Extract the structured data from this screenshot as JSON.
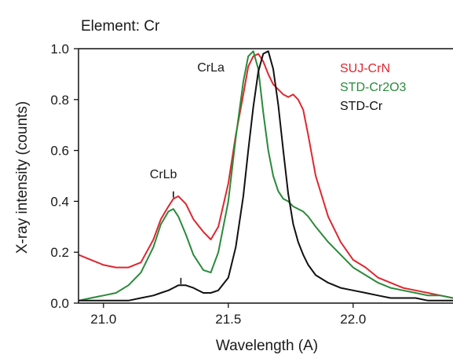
{
  "chart_data": {
    "type": "line",
    "title": "Element: Cr",
    "xlabel": "Wavelength (A)",
    "ylabel": "X-ray intensity (counts)",
    "xlim": [
      20.9,
      22.4
    ],
    "ylim": [
      0.0,
      1.0
    ],
    "xticks": [
      21.0,
      21.5,
      22.0
    ],
    "xtick_labels": [
      "21.0",
      "21.5",
      "22.0"
    ],
    "yticks": [
      0.0,
      0.2,
      0.4,
      0.6,
      0.8,
      1.0
    ],
    "ytick_labels": [
      "0.0",
      "0.2",
      "0.4",
      "0.6",
      "0.8",
      "1.0"
    ],
    "grid": false,
    "legend_position": "top-right",
    "series": [
      {
        "name": "SUJ-CrN",
        "color": "#e0262f",
        "x": [
          20.9,
          20.95,
          21.0,
          21.05,
          21.1,
          21.15,
          21.2,
          21.23,
          21.26,
          21.28,
          21.3,
          21.33,
          21.36,
          21.4,
          21.43,
          21.46,
          21.5,
          21.53,
          21.56,
          21.58,
          21.6,
          21.62,
          21.64,
          21.66,
          21.68,
          21.7,
          21.72,
          21.74,
          21.76,
          21.78,
          21.8,
          21.82,
          21.85,
          21.9,
          21.95,
          22.0,
          22.05,
          22.1,
          22.15,
          22.2,
          22.25,
          22.3,
          22.35,
          22.4
        ],
        "y": [
          0.19,
          0.17,
          0.15,
          0.14,
          0.14,
          0.16,
          0.25,
          0.33,
          0.38,
          0.41,
          0.42,
          0.39,
          0.33,
          0.28,
          0.25,
          0.3,
          0.47,
          0.66,
          0.82,
          0.93,
          0.97,
          0.98,
          0.95,
          0.9,
          0.86,
          0.84,
          0.82,
          0.81,
          0.82,
          0.8,
          0.76,
          0.66,
          0.5,
          0.34,
          0.24,
          0.17,
          0.14,
          0.1,
          0.08,
          0.06,
          0.05,
          0.04,
          0.03,
          0.02
        ]
      },
      {
        "name": "STD-Cr2O3",
        "color": "#2a8a3a",
        "x": [
          20.9,
          20.95,
          21.0,
          21.05,
          21.1,
          21.15,
          21.2,
          21.23,
          21.26,
          21.28,
          21.3,
          21.33,
          21.36,
          21.4,
          21.43,
          21.46,
          21.5,
          21.53,
          21.56,
          21.58,
          21.6,
          21.62,
          21.64,
          21.66,
          21.68,
          21.7,
          21.72,
          21.74,
          21.76,
          21.78,
          21.8,
          21.82,
          21.85,
          21.9,
          21.95,
          22.0,
          22.05,
          22.1,
          22.15,
          22.2,
          22.25,
          22.3,
          22.35,
          22.4
        ],
        "y": [
          0.01,
          0.02,
          0.03,
          0.04,
          0.07,
          0.12,
          0.22,
          0.31,
          0.36,
          0.37,
          0.34,
          0.27,
          0.19,
          0.13,
          0.12,
          0.2,
          0.4,
          0.65,
          0.87,
          0.97,
          0.99,
          0.92,
          0.75,
          0.6,
          0.5,
          0.44,
          0.41,
          0.4,
          0.38,
          0.37,
          0.36,
          0.34,
          0.3,
          0.24,
          0.19,
          0.14,
          0.11,
          0.08,
          0.06,
          0.05,
          0.04,
          0.03,
          0.03,
          0.02
        ]
      },
      {
        "name": "STD-Cr",
        "color": "#111111",
        "x": [
          20.9,
          20.95,
          21.0,
          21.05,
          21.1,
          21.15,
          21.2,
          21.23,
          21.26,
          21.28,
          21.3,
          21.33,
          21.36,
          21.4,
          21.43,
          21.46,
          21.5,
          21.53,
          21.56,
          21.58,
          21.6,
          21.62,
          21.64,
          21.66,
          21.68,
          21.7,
          21.72,
          21.74,
          21.76,
          21.78,
          21.8,
          21.82,
          21.85,
          21.9,
          21.95,
          22.0,
          22.05,
          22.1,
          22.15,
          22.2,
          22.25,
          22.3,
          22.35,
          22.4
        ],
        "y": [
          0.01,
          0.01,
          0.01,
          0.01,
          0.01,
          0.02,
          0.03,
          0.04,
          0.05,
          0.06,
          0.07,
          0.07,
          0.06,
          0.04,
          0.04,
          0.05,
          0.1,
          0.22,
          0.42,
          0.6,
          0.77,
          0.91,
          0.98,
          0.99,
          0.92,
          0.78,
          0.6,
          0.43,
          0.31,
          0.24,
          0.19,
          0.15,
          0.11,
          0.08,
          0.06,
          0.05,
          0.04,
          0.03,
          0.02,
          0.02,
          0.02,
          0.01,
          0.01,
          0.01
        ]
      }
    ],
    "annotations": [
      {
        "text": "CrLa",
        "x": 21.43,
        "y": 0.91
      },
      {
        "text": "CrLb",
        "x": 21.24,
        "y": 0.49
      }
    ],
    "peak_markers": [
      {
        "x": 21.28,
        "y": 0.43
      },
      {
        "x": 21.31,
        "y": 0.09
      }
    ]
  }
}
